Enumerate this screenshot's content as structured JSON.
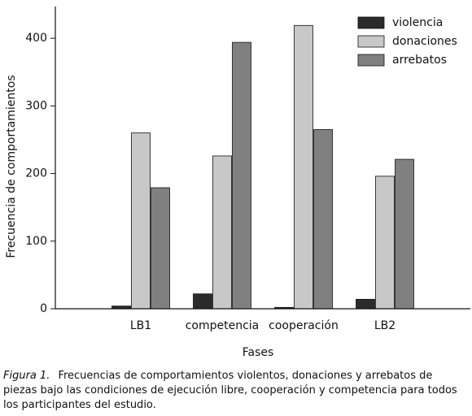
{
  "chart_data": {
    "type": "bar",
    "y_label": "Frecuencia de comportamientos",
    "x_label": "Fases",
    "categories": [
      "LB1",
      "competencia",
      "cooperación",
      "LB2"
    ],
    "series": [
      {
        "name": "violencia",
        "color": "#2b2b2b",
        "values": [
          4,
          22,
          2,
          14
        ]
      },
      {
        "name": "donaciones",
        "color": "#c8c8c8",
        "values": [
          260,
          226,
          419,
          196
        ]
      },
      {
        "name": "arrebatos",
        "color": "#808080",
        "values": [
          179,
          394,
          265,
          221
        ]
      }
    ],
    "ylim": [
      0,
      447
    ],
    "yticks": [
      0,
      100,
      200,
      300,
      400
    ],
    "legend": "upper right",
    "caption_label": "Figura 1.",
    "caption": "Frecuencias de comportamientos violentos, donaciones y arrebatos de piezas bajo las condiciones de ejecución libre, cooperación y competencia para todos los participantes del estudio."
  }
}
